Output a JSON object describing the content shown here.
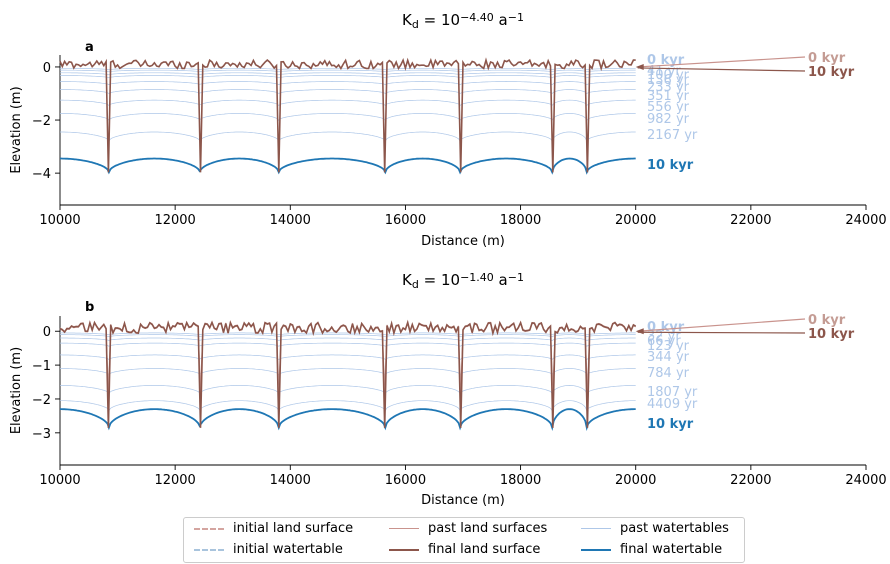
{
  "chart_data": [
    {
      "panel": "a",
      "type": "line",
      "title_prefix": "K",
      "title_sub": "d",
      "title_mid": " = 10",
      "title_exp": "−4.40",
      "title_unit_base": " a",
      "title_unit_exp": "−1",
      "xlabel": "Distance (m)",
      "ylabel": "Elevation (m)",
      "xlim": [
        10000,
        24000
      ],
      "ylim": [
        -5.2,
        0.45
      ],
      "xticks": [
        10000,
        12000,
        14000,
        16000,
        18000,
        20000,
        22000,
        24000
      ],
      "yticks": [
        0,
        -2,
        -4
      ],
      "ytick_labels": [
        "0",
        "−2",
        "−4"
      ],
      "channels": [
        10850,
        12430,
        13800,
        15650,
        16950,
        18550,
        19150
      ],
      "watertable_labels": [
        "0 kyr",
        "41 yr",
        "100 yr",
        "136 yr",
        "233 yr",
        "351 yr",
        "556 yr",
        "982 yr",
        "2167 yr",
        "10 kyr"
      ],
      "watertable_depths_at_divide": [
        -0.05,
        -0.12,
        -0.22,
        -0.32,
        -0.55,
        -0.85,
        -1.25,
        -1.75,
        -2.45,
        -3.45
      ],
      "watertable_depth_at_channel_final": -3.97,
      "land_labels": [
        "0 kyr",
        "10 kyr"
      ]
    },
    {
      "panel": "b",
      "type": "line",
      "title_prefix": "K",
      "title_sub": "d",
      "title_mid": " = 10",
      "title_exp": "−1.40",
      "title_unit_base": " a",
      "title_unit_exp": "−1",
      "xlabel": "Distance (m)",
      "ylabel": "Elevation (m)",
      "xlim": [
        10000,
        24000
      ],
      "ylim": [
        -3.95,
        0.45
      ],
      "xticks": [
        10000,
        12000,
        14000,
        16000,
        18000,
        20000,
        22000,
        24000
      ],
      "yticks": [
        0,
        -1,
        -2,
        -3
      ],
      "ytick_labels": [
        "0",
        "−1",
        "−2",
        "−3"
      ],
      "channels": [
        10850,
        12430,
        13800,
        15650,
        16950,
        18550,
        19150
      ],
      "watertable_labels": [
        "0 kyr",
        "32 yr",
        "66 yr",
        "123 yr",
        "344 yr",
        "784 yr",
        "1807 yr",
        "4409 yr",
        "10 kyr"
      ],
      "watertable_depths_at_divide": [
        -0.05,
        -0.1,
        -0.2,
        -0.35,
        -0.7,
        -1.1,
        -1.6,
        -2.05,
        -2.3
      ],
      "watertable_depth_at_channel_final": -2.85,
      "land_labels": [
        "0 kyr",
        "10 kyr"
      ]
    }
  ],
  "legend": [
    {
      "label": "initial land surface",
      "color": "#d4a5a0",
      "style": "dashed"
    },
    {
      "label": "initial watertable",
      "color": "#a9c4dd",
      "style": "dashed"
    },
    {
      "label": "past land surfaces",
      "color": "#c9938d",
      "style": "solid-thin"
    },
    {
      "label": "final land surface",
      "color": "#8c564b",
      "style": "solid"
    },
    {
      "label": "past watertables",
      "color": "#aec7e8",
      "style": "solid-thin"
    },
    {
      "label": "final watertable",
      "color": "#1f77b4",
      "style": "solid"
    }
  ],
  "colors": {
    "final_land": "#8c564b",
    "past_land": "#c9938d",
    "initial_land_label": "#c49c94",
    "past_watertable": "#aec7e8",
    "final_watertable": "#1f77b4",
    "watertable_label": "#aec7e8"
  }
}
